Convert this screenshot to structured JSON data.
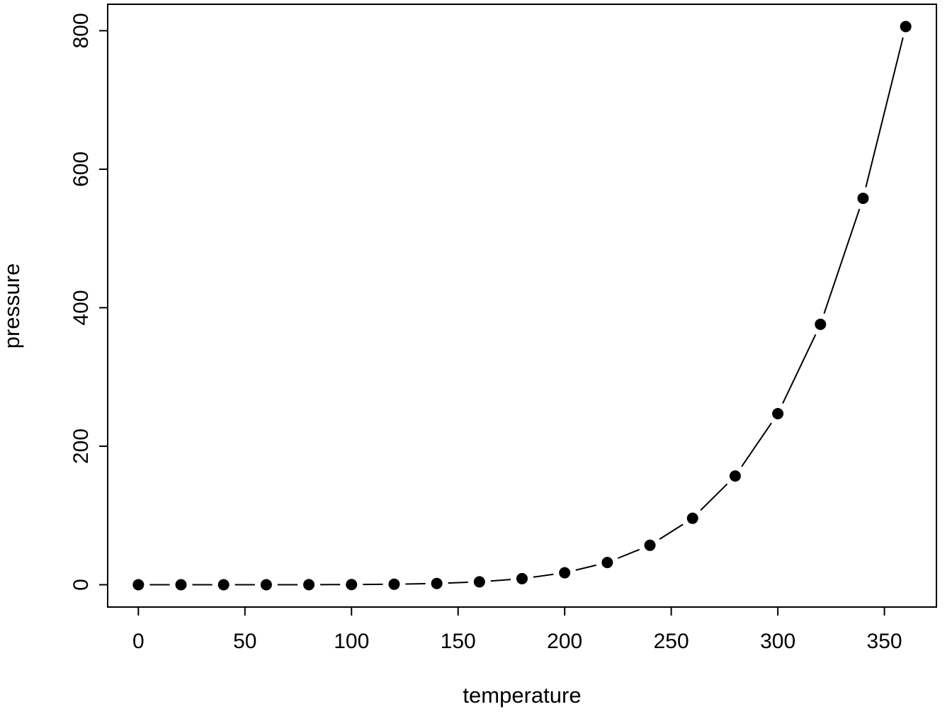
{
  "chart_data": {
    "type": "scatter",
    "title": "",
    "xlabel": "temperature",
    "ylabel": "pressure",
    "x": [
      0,
      20,
      40,
      60,
      80,
      100,
      120,
      140,
      160,
      180,
      200,
      220,
      240,
      260,
      280,
      300,
      320,
      340,
      360
    ],
    "y": [
      0.0002,
      0.0012,
      0.006,
      0.03,
      0.09,
      0.27,
      0.75,
      1.85,
      4.2,
      8.8,
      17.3,
      32.1,
      57,
      96,
      157,
      247,
      376,
      558,
      806
    ],
    "xticks": [
      0,
      50,
      100,
      150,
      200,
      250,
      300,
      350
    ],
    "yticks": [
      0,
      200,
      400,
      600,
      800
    ],
    "xlim": [
      -14.4,
      374.4
    ],
    "ylim": [
      -32.2,
      838.2
    ],
    "marker": "filled-circle",
    "connector": "line-segments-with-gaps",
    "foreground": "#000000",
    "background": "#ffffff",
    "legend": "none",
    "grid": "off"
  }
}
